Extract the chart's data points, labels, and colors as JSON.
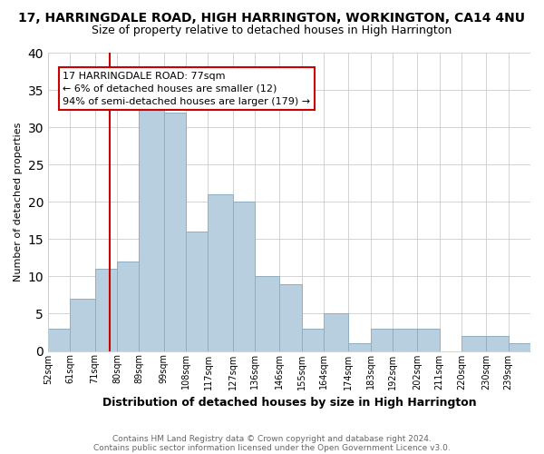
{
  "title1": "17, HARRINGDALE ROAD, HIGH HARRINGTON, WORKINGTON, CA14 4NU",
  "title2": "Size of property relative to detached houses in High Harrington",
  "xlabel": "Distribution of detached houses by size in High Harrington",
  "ylabel": "Number of detached properties",
  "footnote1": "Contains HM Land Registry data © Crown copyright and database right 2024.",
  "footnote2": "Contains public sector information licensed under the Open Government Licence v3.0.",
  "bar_labels": [
    "52sqm",
    "61sqm",
    "71sqm",
    "80sqm",
    "89sqm",
    "99sqm",
    "108sqm",
    "117sqm",
    "127sqm",
    "136sqm",
    "146sqm",
    "155sqm",
    "164sqm",
    "174sqm",
    "183sqm",
    "192sqm",
    "202sqm",
    "211sqm",
    "220sqm",
    "230sqm",
    "239sqm"
  ],
  "bar_values": [
    3,
    7,
    11,
    12,
    33,
    32,
    16,
    21,
    20,
    10,
    9,
    3,
    5,
    1,
    3,
    3,
    3,
    0,
    2,
    2,
    1
  ],
  "bin_edges": [
    52,
    61,
    71,
    80,
    89,
    99,
    108,
    117,
    127,
    136,
    146,
    155,
    164,
    174,
    183,
    192,
    202,
    211,
    220,
    230,
    239,
    248
  ],
  "bar_color": "#b8cfe0",
  "bar_edge_color": "#90aec0",
  "vline_x": 77,
  "vline_color": "#cc0000",
  "ylim": [
    0,
    40
  ],
  "yticks": [
    0,
    5,
    10,
    15,
    20,
    25,
    30,
    35,
    40
  ],
  "annotation_title": "17 HARRINGDALE ROAD: 77sqm",
  "annotation_line1": "← 6% of detached houses are smaller (12)",
  "annotation_line2": "94% of semi-detached houses are larger (179) →",
  "annotation_box_color": "#ffffff",
  "annotation_box_edge": "#cc0000",
  "bg_color": "#ffffff",
  "plot_bg_color": "#ffffff",
  "grid_color": "#cccccc",
  "title1_fontsize": 10,
  "title2_fontsize": 9,
  "xlabel_fontsize": 9,
  "ylabel_fontsize": 8,
  "tick_fontsize": 7,
  "footnote_fontsize": 6.5,
  "annotation_fontsize": 8
}
